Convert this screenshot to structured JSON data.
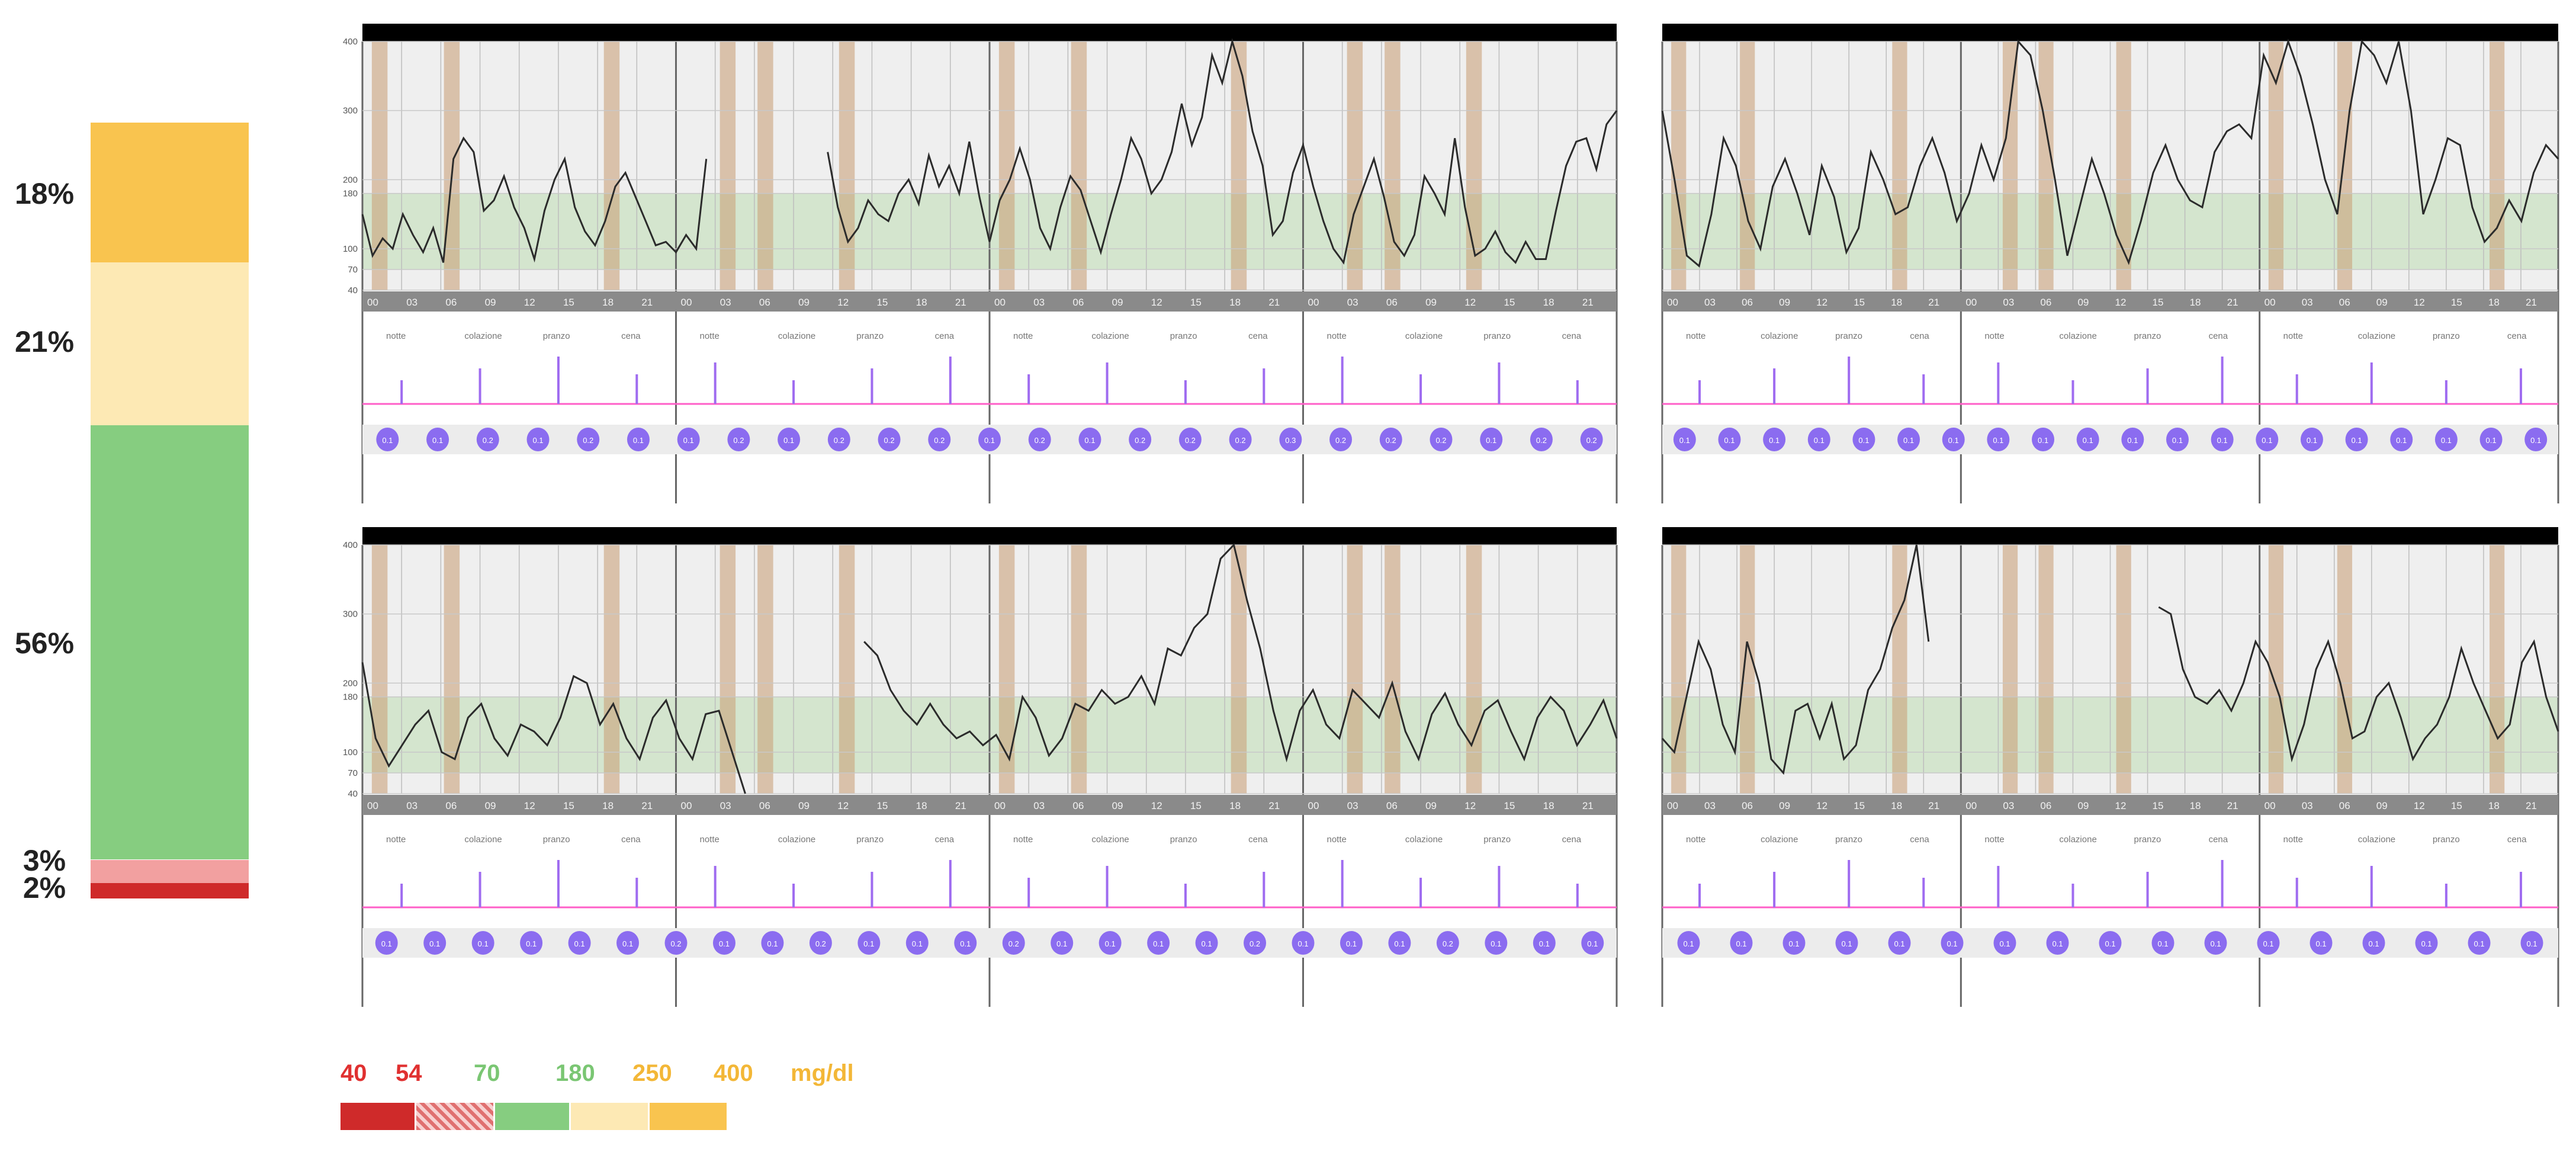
{
  "time_in_range": {
    "segments": [
      {
        "label": "18%",
        "value": 18,
        "color": "#f9c44f"
      },
      {
        "label": "21%",
        "value": 21,
        "color": "#fde9b4"
      },
      {
        "label": "56%",
        "value": 56,
        "color": "#86cd80"
      },
      {
        "label": "3%",
        "value": 3,
        "color": "#f2a0a0"
      },
      {
        "label": "2%",
        "value": 2,
        "color": "#cf2a2a"
      }
    ]
  },
  "legend": {
    "ticks": [
      {
        "text": "40",
        "color": "#e03030"
      },
      {
        "text": "54",
        "color": "#e03030"
      },
      {
        "text": "70",
        "color": "#7ac673"
      },
      {
        "text": "180",
        "color": "#7ac673"
      },
      {
        "text": "250",
        "color": "#f3b737"
      },
      {
        "text": "400",
        "color": "#f3b737"
      }
    ],
    "unit": "mg/dl",
    "unit_color": "#f3b737",
    "swatches": [
      {
        "name": "very-low",
        "color": "#cf2a2a",
        "pattern": false
      },
      {
        "name": "low",
        "color": "#e07070",
        "pattern": true
      },
      {
        "name": "in-range",
        "color": "#86cd80",
        "pattern": false
      },
      {
        "name": "high",
        "color": "#fde9b4",
        "pattern": false
      },
      {
        "name": "very-high",
        "color": "#f9c44f",
        "pattern": false
      }
    ]
  },
  "chart_data": [
    {
      "type": "line",
      "panel": "top-left",
      "ylim": [
        40,
        400
      ],
      "y_ticks": [
        "400",
        "300",
        "200",
        "180",
        "100",
        "70",
        "40"
      ],
      "x_ticks": [
        "00",
        "03",
        "06",
        "09",
        "12",
        "15",
        "18",
        "21",
        "00",
        "03",
        "06",
        "09",
        "12",
        "15",
        "18",
        "21",
        "00",
        "03",
        "06",
        "09",
        "12",
        "15",
        "18",
        "21",
        "00",
        "03",
        "06",
        "09",
        "12",
        "15",
        "18",
        "21"
      ],
      "meal_labels": [
        "notte",
        "colazione",
        "pranzo",
        "cena",
        "notte",
        "colazione",
        "pranzo",
        "cena",
        "notte",
        "colazione",
        "pranzo",
        "cena",
        "notte",
        "colazione",
        "pranzo",
        "cena"
      ],
      "series": [
        {
          "values": [
            150,
            90,
            115,
            100,
            150,
            120,
            95,
            130,
            80,
            230,
            260,
            240,
            155,
            170,
            205,
            160,
            130,
            85,
            155,
            200,
            230,
            160,
            125,
            105,
            140,
            190,
            210,
            175,
            140,
            105,
            110,
            95,
            120,
            100,
            230,
            null,
            null,
            null,
            null,
            null,
            null,
            null,
            null,
            null,
            null,
            null,
            240,
            160,
            110,
            130,
            170,
            150,
            140,
            180,
            200,
            165,
            235,
            190,
            220,
            180,
            255,
            175,
            110,
            170,
            200,
            245,
            200,
            130,
            100,
            160,
            205,
            185,
            140,
            95,
            150,
            200,
            260,
            230,
            180,
            200,
            240,
            310,
            250,
            290,
            380,
            340,
            400,
            350,
            270,
            220,
            120,
            140,
            210,
            250,
            190,
            140,
            100,
            80,
            150,
            190,
            230,
            175,
            110,
            90,
            120,
            205,
            180,
            150,
            260,
            160,
            90,
            100,
            125,
            95,
            80,
            110,
            85,
            85,
            155,
            220,
            255,
            260,
            215,
            280,
            300
          ]
        }
      ],
      "basal_row": [
        "0.1",
        "0.1",
        "0.2",
        "0.1",
        "0.2",
        "0.1",
        "0.1",
        "0.2",
        "0.1",
        "0.2",
        "0.2",
        "0.2",
        "0.1",
        "0.2",
        "0.1",
        "0.2",
        "0.2",
        "0.2",
        "0.3",
        "0.2",
        "0.2",
        "0.2",
        "0.1",
        "0.2",
        "0.2"
      ]
    },
    {
      "type": "line",
      "panel": "top-right",
      "ylim": [
        40,
        400
      ],
      "y_ticks": [],
      "x_ticks": [
        "00",
        "03",
        "06",
        "09",
        "12",
        "15",
        "18",
        "21",
        "00",
        "03",
        "06",
        "09",
        "12",
        "15",
        "18",
        "21",
        "00",
        "03",
        "06",
        "09",
        "12",
        "15",
        "18",
        "21"
      ],
      "meal_labels": [
        "notte",
        "colazione",
        "pranzo",
        "cena",
        "notte",
        "colazione",
        "pranzo",
        "cena",
        "notte",
        "colazione",
        "pranzo",
        "cena"
      ],
      "series": [
        {
          "values": [
            300,
            200,
            90,
            75,
            150,
            260,
            220,
            140,
            100,
            190,
            230,
            180,
            120,
            220,
            175,
            95,
            130,
            240,
            200,
            150,
            160,
            220,
            260,
            210,
            140,
            180,
            250,
            200,
            260,
            400,
            380,
            300,
            200,
            90,
            160,
            230,
            180,
            120,
            80,
            140,
            210,
            250,
            200,
            170,
            160,
            240,
            270,
            280,
            260,
            380,
            340,
            400,
            350,
            280,
            200,
            150,
            300,
            400,
            380,
            340,
            400,
            300,
            150,
            200,
            260,
            250,
            160,
            110,
            130,
            170,
            140,
            210,
            250,
            230
          ]
        }
      ],
      "basal_row": [
        "0.1",
        "0.1",
        "0.1",
        "0.1",
        "0.1",
        "0.1",
        "0.1",
        "0.1",
        "0.1",
        "0.1",
        "0.1",
        "0.1",
        "0.1",
        "0.1",
        "0.1",
        "0.1",
        "0.1",
        "0.1",
        "0.1",
        "0.1"
      ]
    },
    {
      "type": "line",
      "panel": "bottom-left",
      "ylim": [
        40,
        400
      ],
      "y_ticks": [
        "400",
        "300",
        "200",
        "180",
        "100",
        "70",
        "40"
      ],
      "x_ticks": [
        "00",
        "03",
        "06",
        "09",
        "12",
        "15",
        "18",
        "21",
        "00",
        "03",
        "06",
        "09",
        "12",
        "15",
        "18",
        "21",
        "00",
        "03",
        "06",
        "09",
        "12",
        "15",
        "18",
        "21",
        "00",
        "03",
        "06",
        "09",
        "12",
        "15",
        "18",
        "21"
      ],
      "meal_labels": [
        "notte",
        "colazione",
        "pranzo",
        "cena",
        "notte",
        "colazione",
        "pranzo",
        "cena",
        "notte",
        "colazione",
        "pranzo",
        "cena",
        "notte",
        "colazione",
        "pranzo",
        "cena"
      ],
      "series": [
        {
          "values": [
            230,
            120,
            80,
            110,
            140,
            160,
            100,
            90,
            150,
            170,
            120,
            95,
            140,
            130,
            110,
            150,
            210,
            200,
            140,
            170,
            120,
            90,
            150,
            175,
            120,
            90,
            155,
            160,
            100,
            40,
            null,
            null,
            null,
            null,
            null,
            null,
            null,
            null,
            260,
            240,
            190,
            160,
            140,
            170,
            140,
            120,
            130,
            110,
            125,
            90,
            180,
            150,
            95,
            120,
            170,
            160,
            190,
            170,
            180,
            210,
            170,
            250,
            240,
            280,
            300,
            380,
            400,
            320,
            250,
            160,
            90,
            160,
            190,
            140,
            120,
            190,
            170,
            150,
            200,
            130,
            90,
            155,
            185,
            140,
            110,
            160,
            175,
            130,
            90,
            150,
            180,
            160,
            110,
            140,
            175,
            120
          ]
        }
      ],
      "basal_row": [
        "0.1",
        "0.1",
        "0.1",
        "0.1",
        "0.1",
        "0.1",
        "0.2",
        "0.1",
        "0.1",
        "0.2",
        "0.1",
        "0.1",
        "0.1",
        "0.2",
        "0.1",
        "0.1",
        "0.1",
        "0.1",
        "0.2",
        "0.1",
        "0.1",
        "0.1",
        "0.2",
        "0.1",
        "0.1",
        "0.1"
      ]
    },
    {
      "type": "line",
      "panel": "bottom-right",
      "ylim": [
        40,
        400
      ],
      "y_ticks": [],
      "x_ticks": [
        "00",
        "03",
        "06",
        "09",
        "12",
        "15",
        "18",
        "21",
        "00",
        "03",
        "06",
        "09",
        "12",
        "15",
        "18",
        "21",
        "00",
        "03",
        "06",
        "09",
        "12",
        "15",
        "18",
        "21"
      ],
      "meal_labels": [
        "notte",
        "colazione",
        "pranzo",
        "cena",
        "notte",
        "colazione",
        "pranzo",
        "cena",
        "notte",
        "colazione",
        "pranzo",
        "cena"
      ],
      "series": [
        {
          "values": [
            120,
            100,
            180,
            260,
            220,
            140,
            100,
            260,
            200,
            90,
            70,
            160,
            170,
            120,
            170,
            90,
            110,
            190,
            220,
            280,
            320,
            400,
            260,
            null,
            null,
            null,
            null,
            null,
            null,
            null,
            null,
            null,
            null,
            null,
            null,
            null,
            null,
            null,
            null,
            null,
            null,
            310,
            300,
            220,
            180,
            170,
            190,
            160,
            200,
            260,
            230,
            180,
            90,
            140,
            220,
            260,
            200,
            120,
            130,
            180,
            200,
            150,
            90,
            120,
            140,
            180,
            250,
            200,
            160,
            120,
            140,
            230,
            260,
            180,
            130
          ]
        }
      ],
      "basal_row": [
        "0.1",
        "0.1",
        "0.1",
        "0.1",
        "0.1",
        "0.1",
        "0.1",
        "0.1",
        "0.1",
        "0.1",
        "0.1",
        "0.1",
        "0.1",
        "0.1",
        "0.1",
        "0.1",
        "0.1"
      ]
    }
  ]
}
